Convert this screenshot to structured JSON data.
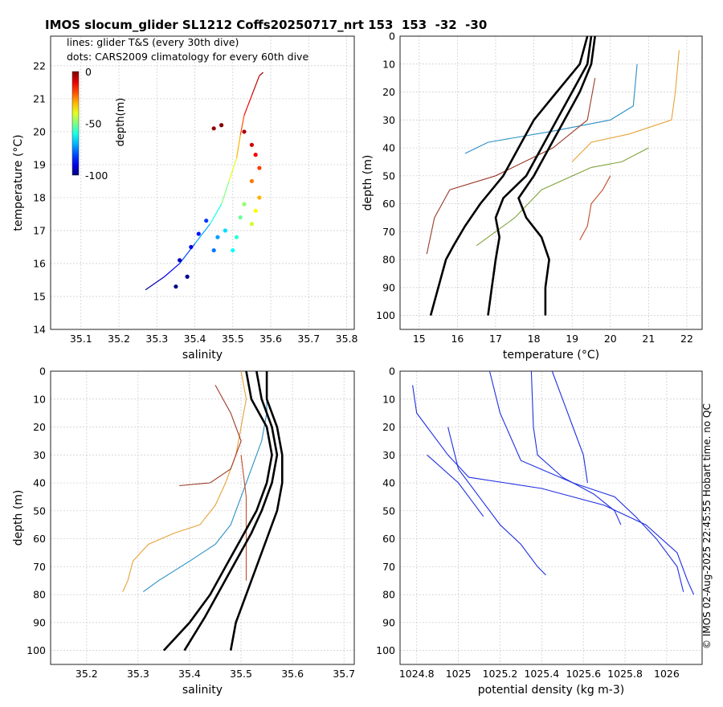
{
  "title": "IMOS slocum_glider SL1212 Coffs20250717_nrt 153  153  -32  -30",
  "side_note": "© IMOS 02-Aug-2025 22:45:55 Hobart time. no QC",
  "chart_data": [
    {
      "type": "scatter",
      "panel": "top-left",
      "xlabel": "salinity",
      "ylabel": "temperature (°C)",
      "xlim": [
        35.02,
        35.82
      ],
      "ylim": [
        14,
        22.9
      ],
      "xticks": [
        35.1,
        35.2,
        35.3,
        35.4,
        35.5,
        35.6,
        35.7,
        35.8
      ],
      "yticks": [
        14,
        15,
        16,
        17,
        18,
        19,
        20,
        21,
        22
      ],
      "grid": true,
      "legend_lines": [
        "lines: glider T&S (every 30th dive)",
        "dots: CARS2009 climatology for every 60th dive"
      ],
      "colorbar": {
        "label": "depth(m)",
        "ticks": [
          "0",
          "-50",
          "-100"
        ],
        "range": [
          -100,
          0
        ]
      },
      "series": [
        {
          "label": "glider T&S",
          "points": [
            [
              35.27,
              15.2,
              -100
            ],
            [
              35.32,
              15.6,
              -92
            ],
            [
              35.36,
              16.0,
              -85
            ],
            [
              35.4,
              16.6,
              -76
            ],
            [
              35.44,
              17.2,
              -66
            ],
            [
              35.47,
              17.8,
              -55
            ],
            [
              35.49,
              18.5,
              -45
            ],
            [
              35.51,
              19.2,
              -35
            ],
            [
              35.52,
              19.9,
              -25
            ],
            [
              35.53,
              20.5,
              -15
            ],
            [
              35.55,
              21.1,
              -8
            ],
            [
              35.57,
              21.7,
              -3
            ],
            [
              35.58,
              21.8,
              0
            ]
          ]
        },
        {
          "label": "CARS2009 dots",
          "points": [
            [
              35.35,
              15.3,
              -100
            ],
            [
              35.38,
              15.6,
              -98
            ],
            [
              35.36,
              16.1,
              -94
            ],
            [
              35.39,
              16.5,
              -90
            ],
            [
              35.41,
              16.9,
              -86
            ],
            [
              35.43,
              17.3,
              -82
            ],
            [
              35.45,
              16.4,
              -76
            ],
            [
              35.46,
              16.8,
              -72
            ],
            [
              35.48,
              17.0,
              -66
            ],
            [
              35.5,
              16.4,
              -62
            ],
            [
              35.51,
              16.8,
              -58
            ],
            [
              35.52,
              17.4,
              -52
            ],
            [
              35.53,
              17.8,
              -48
            ],
            [
              35.55,
              17.2,
              -42
            ],
            [
              35.56,
              17.6,
              -38
            ],
            [
              35.57,
              18.0,
              -30
            ],
            [
              35.55,
              18.5,
              -24
            ],
            [
              35.57,
              18.9,
              -18
            ],
            [
              35.56,
              19.3,
              -12
            ],
            [
              35.55,
              19.6,
              -8
            ],
            [
              35.53,
              20.0,
              -4
            ],
            [
              35.45,
              20.1,
              -2
            ],
            [
              35.47,
              20.2,
              0
            ]
          ]
        }
      ]
    },
    {
      "type": "line",
      "panel": "top-right",
      "xlabel": "temperature (°C)",
      "ylabel": "depth (m)",
      "xlim": [
        14.5,
        22.4
      ],
      "ylim": [
        0,
        105
      ],
      "y_reversed": true,
      "xticks": [
        15,
        16,
        17,
        18,
        19,
        20,
        21,
        22
      ],
      "yticks": [
        0,
        10,
        20,
        30,
        40,
        50,
        60,
        70,
        80,
        90,
        100
      ],
      "grid": true,
      "series": [
        {
          "label": "glider profile",
          "points": [
            [
              21.8,
              5
            ],
            [
              21.7,
              20
            ],
            [
              21.6,
              30
            ],
            [
              20.5,
              35
            ],
            [
              19.5,
              38
            ],
            [
              19.0,
              45
            ]
          ]
        },
        {
          "label": "glider profile",
          "points": [
            [
              20.7,
              10
            ],
            [
              20.6,
              25
            ],
            [
              20.0,
              30
            ],
            [
              18.5,
              34
            ],
            [
              16.8,
              38
            ],
            [
              16.2,
              42
            ]
          ]
        },
        {
          "label": "glider profile",
          "points": [
            [
              19.6,
              15
            ],
            [
              19.4,
              30
            ],
            [
              18.5,
              40
            ],
            [
              17.0,
              50
            ],
            [
              15.8,
              55
            ],
            [
              15.4,
              65
            ],
            [
              15.2,
              78
            ]
          ]
        },
        {
          "label": "glider profile",
          "points": [
            [
              20.0,
              50
            ],
            [
              19.8,
              55
            ],
            [
              19.5,
              60
            ],
            [
              19.4,
              68
            ],
            [
              19.2,
              73
            ]
          ]
        },
        {
          "label": "glider profile",
          "points": [
            [
              21.0,
              40
            ],
            [
              20.3,
              45
            ],
            [
              19.5,
              47
            ],
            [
              18.2,
              55
            ],
            [
              17.5,
              65
            ],
            [
              16.5,
              75
            ]
          ]
        },
        {
          "label": "CARS2009 climatology",
          "points": [
            [
              19.4,
              0
            ],
            [
              19.2,
              10
            ],
            [
              18.6,
              20
            ],
            [
              18.0,
              30
            ],
            [
              17.6,
              40
            ],
            [
              17.2,
              50
            ],
            [
              16.6,
              60
            ],
            [
              16.2,
              68
            ],
            [
              15.9,
              75
            ],
            [
              15.7,
              80
            ],
            [
              15.3,
              100
            ]
          ]
        },
        {
          "label": "CARS2009 climatology",
          "points": [
            [
              19.6,
              0
            ],
            [
              19.5,
              10
            ],
            [
              19.2,
              20
            ],
            [
              18.8,
              30
            ],
            [
              18.4,
              40
            ],
            [
              18.0,
              50
            ],
            [
              17.6,
              58
            ],
            [
              17.8,
              65
            ],
            [
              18.2,
              72
            ],
            [
              18.4,
              80
            ],
            [
              18.3,
              90
            ],
            [
              18.3,
              100
            ]
          ]
        },
        {
          "label": "CARS2009 climatology",
          "points": [
            [
              19.5,
              0
            ],
            [
              19.4,
              10
            ],
            [
              19.0,
              20
            ],
            [
              18.6,
              30
            ],
            [
              18.2,
              40
            ],
            [
              17.8,
              50
            ],
            [
              17.2,
              58
            ],
            [
              17.0,
              65
            ],
            [
              17.1,
              72
            ],
            [
              17.0,
              80
            ],
            [
              16.9,
              90
            ],
            [
              16.8,
              100
            ]
          ]
        }
      ]
    },
    {
      "type": "line",
      "panel": "bottom-left",
      "xlabel": "salinity",
      "ylabel": "depth (m)",
      "xlim": [
        35.13,
        35.72
      ],
      "ylim": [
        0,
        105
      ],
      "y_reversed": true,
      "xticks": [
        35.2,
        35.3,
        35.4,
        35.5,
        35.6,
        35.7
      ],
      "yticks": [
        0,
        10,
        20,
        30,
        40,
        50,
        60,
        70,
        80,
        90,
        100
      ],
      "grid": true,
      "series": [
        {
          "label": "glider profile",
          "points": [
            [
              35.5,
              0
            ],
            [
              35.51,
              10
            ],
            [
              35.5,
              20
            ],
            [
              35.49,
              30
            ],
            [
              35.47,
              40
            ],
            [
              35.45,
              48
            ],
            [
              35.42,
              55
            ],
            [
              35.37,
              58
            ],
            [
              35.32,
              62
            ],
            [
              35.29,
              68
            ],
            [
              35.28,
              75
            ],
            [
              35.27,
              79
            ]
          ]
        },
        {
          "label": "glider profile",
          "points": [
            [
              35.55,
              0
            ],
            [
              35.55,
              15
            ],
            [
              35.54,
              25
            ],
            [
              35.52,
              35
            ],
            [
              35.5,
              45
            ],
            [
              35.48,
              55
            ],
            [
              35.45,
              62
            ],
            [
              35.4,
              68
            ],
            [
              35.34,
              75
            ],
            [
              35.31,
              79
            ]
          ]
        },
        {
          "label": "glider profile",
          "points": [
            [
              35.45,
              5
            ],
            [
              35.48,
              15
            ],
            [
              35.5,
              25
            ],
            [
              35.48,
              35
            ],
            [
              35.44,
              40
            ],
            [
              35.38,
              41
            ]
          ]
        },
        {
          "label": "glider profile",
          "points": [
            [
              35.5,
              30
            ],
            [
              35.51,
              45
            ],
            [
              35.51,
              60
            ],
            [
              35.51,
              75
            ]
          ]
        },
        {
          "label": "CARS2009 climatology",
          "points": [
            [
              35.53,
              0
            ],
            [
              35.54,
              10
            ],
            [
              35.56,
              20
            ],
            [
              35.57,
              30
            ],
            [
              35.56,
              40
            ],
            [
              35.54,
              50
            ],
            [
              35.52,
              58
            ],
            [
              35.49,
              68
            ],
            [
              35.46,
              78
            ],
            [
              35.43,
              88
            ],
            [
              35.39,
              100
            ]
          ]
        },
        {
          "label": "CARS2009 climatology",
          "points": [
            [
              35.55,
              0
            ],
            [
              35.55,
              10
            ],
            [
              35.57,
              20
            ],
            [
              35.58,
              30
            ],
            [
              35.58,
              40
            ],
            [
              35.57,
              50
            ],
            [
              35.55,
              60
            ],
            [
              35.53,
              70
            ],
            [
              35.51,
              80
            ],
            [
              35.49,
              90
            ],
            [
              35.48,
              100
            ]
          ]
        },
        {
          "label": "CARS2009 climatology",
          "points": [
            [
              35.51,
              0
            ],
            [
              35.52,
              10
            ],
            [
              35.55,
              20
            ],
            [
              35.56,
              30
            ],
            [
              35.55,
              40
            ],
            [
              35.53,
              50
            ],
            [
              35.5,
              60
            ],
            [
              35.47,
              70
            ],
            [
              35.44,
              80
            ],
            [
              35.4,
              90
            ],
            [
              35.35,
              100
            ]
          ]
        }
      ]
    },
    {
      "type": "line",
      "panel": "bottom-right",
      "xlabel": "potential density (kg m-3)",
      "ylabel": "",
      "xlim": [
        1024.72,
        1026.17
      ],
      "ylim": [
        0,
        105
      ],
      "y_reversed": true,
      "xticks": [
        1024.8,
        1025,
        1025.2,
        1025.4,
        1025.6,
        1025.8,
        1026
      ],
      "xtick_labels": [
        "1024.8",
        "1025",
        "1025.2",
        "1025.4",
        "1025.6",
        "1025.8",
        "1026"
      ],
      "yticks": [
        0,
        10,
        20,
        30,
        40,
        50,
        60,
        70,
        80,
        90,
        100
      ],
      "grid": true,
      "series": [
        {
          "label": "density profile",
          "points": [
            [
              1024.78,
              5
            ],
            [
              1024.8,
              15
            ],
            [
              1024.95,
              30
            ],
            [
              1025.05,
              38
            ],
            [
              1025.4,
              42
            ],
            [
              1025.7,
              48
            ],
            [
              1025.9,
              55
            ],
            [
              1026.05,
              65
            ],
            [
              1026.1,
              75
            ],
            [
              1026.13,
              80
            ]
          ]
        },
        {
          "label": "density profile",
          "points": [
            [
              1025.15,
              0
            ],
            [
              1025.2,
              15
            ],
            [
              1025.3,
              32
            ],
            [
              1025.55,
              40
            ],
            [
              1025.75,
              45
            ],
            [
              1025.85,
              52
            ],
            [
              1025.95,
              60
            ],
            [
              1026.05,
              70
            ],
            [
              1026.08,
              79
            ]
          ]
        },
        {
          "label": "density profile",
          "points": [
            [
              1025.35,
              0
            ],
            [
              1025.36,
              20
            ],
            [
              1025.38,
              30
            ],
            [
              1025.5,
              38
            ],
            [
              1025.65,
              44
            ],
            [
              1025.75,
              50
            ],
            [
              1025.78,
              55
            ]
          ]
        },
        {
          "label": "density profile",
          "points": [
            [
              1024.95,
              20
            ],
            [
              1025.0,
              35
            ],
            [
              1025.1,
              45
            ],
            [
              1025.2,
              55
            ],
            [
              1025.3,
              62
            ],
            [
              1025.38,
              70
            ],
            [
              1025.42,
              73
            ]
          ]
        },
        {
          "label": "density profile",
          "points": [
            [
              1024.85,
              30
            ],
            [
              1025.0,
              40
            ],
            [
              1025.05,
              45
            ],
            [
              1025.1,
              50
            ],
            [
              1025.12,
              52
            ]
          ]
        },
        {
          "label": "density profile",
          "points": [
            [
              1025.45,
              0
            ],
            [
              1025.5,
              10
            ],
            [
              1025.55,
              20
            ],
            [
              1025.6,
              30
            ],
            [
              1025.62,
              40
            ]
          ]
        }
      ]
    }
  ]
}
